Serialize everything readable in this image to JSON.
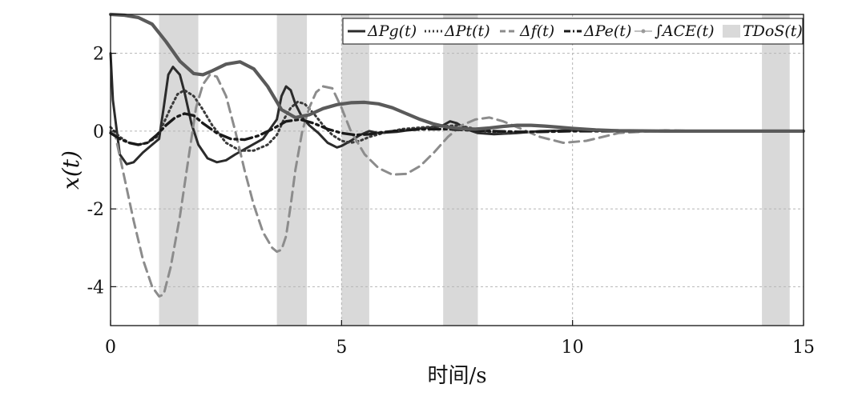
{
  "chart_data": {
    "type": "line",
    "title": "",
    "xlabel": "时间/s",
    "ylabel": "x(t)",
    "xlim": [
      0,
      15
    ],
    "ylim": [
      -5,
      3
    ],
    "xticks": [
      0,
      5,
      10,
      15
    ],
    "xtick_labels": [
      "0",
      "5",
      "10",
      "15"
    ],
    "yticks": [
      -4,
      -2,
      0,
      2
    ],
    "ytick_labels": [
      "-4",
      "-2",
      "0",
      "2"
    ],
    "grid": true,
    "legend_position": "top",
    "legend": [
      "ΔPg(t)",
      "ΔPt(t)",
      "Δf(t)",
      "ΔPe(t)",
      "∫ACE(t)",
      "TDoS(t)"
    ],
    "dos_intervals": [
      [
        1.05,
        1.9
      ],
      [
        3.6,
        4.25
      ],
      [
        5.0,
        5.6
      ],
      [
        7.2,
        7.95
      ],
      [
        14.1,
        14.7
      ]
    ],
    "series": [
      {
        "name": "ΔPg(t)",
        "style": "solid",
        "color": "#2b2b2b",
        "x": [
          0,
          0.05,
          0.2,
          0.35,
          0.5,
          0.7,
          0.9,
          1.05,
          1.15,
          1.25,
          1.35,
          1.5,
          1.6,
          1.75,
          1.9,
          2.1,
          2.3,
          2.5,
          2.7,
          3.0,
          3.3,
          3.6,
          3.7,
          3.8,
          3.9,
          4.0,
          4.15,
          4.3,
          4.5,
          4.7,
          4.9,
          5.0,
          5.2,
          5.4,
          5.6,
          5.8,
          6.2,
          6.6,
          7.0,
          7.2,
          7.35,
          7.5,
          7.7,
          7.95,
          8.3,
          8.8,
          9.3,
          10,
          11,
          12,
          13,
          14,
          15
        ],
        "y": [
          2.0,
          0.8,
          -0.6,
          -0.85,
          -0.8,
          -0.55,
          -0.35,
          -0.2,
          0.6,
          1.45,
          1.65,
          1.45,
          1.0,
          0.2,
          -0.35,
          -0.7,
          -0.8,
          -0.75,
          -0.6,
          -0.4,
          -0.2,
          0.3,
          0.9,
          1.15,
          1.05,
          0.7,
          0.35,
          0.15,
          -0.05,
          -0.3,
          -0.42,
          -0.38,
          -0.25,
          -0.1,
          0.0,
          -0.05,
          -0.02,
          0.05,
          0.1,
          0.15,
          0.25,
          0.2,
          0.05,
          -0.05,
          -0.08,
          -0.05,
          0.0,
          0.02,
          0.0,
          0.0,
          0.0,
          0.0,
          0.0
        ]
      },
      {
        "name": "ΔPt(t)",
        "style": "dotted",
        "color": "#3a3a3a",
        "x": [
          0,
          0.2,
          0.4,
          0.6,
          0.8,
          1.0,
          1.15,
          1.3,
          1.45,
          1.6,
          1.8,
          2.0,
          2.2,
          2.5,
          2.8,
          3.1,
          3.4,
          3.6,
          3.75,
          3.9,
          4.05,
          4.2,
          4.4,
          4.6,
          4.8,
          5.0,
          5.2,
          5.4,
          5.6,
          5.9,
          6.3,
          6.8,
          7.2,
          7.5,
          7.8,
          8.1,
          8.5,
          9.0,
          9.5,
          10,
          11,
          12,
          13,
          14,
          15
        ],
        "y": [
          0.1,
          -0.15,
          -0.3,
          -0.35,
          -0.3,
          -0.15,
          0.2,
          0.6,
          0.95,
          1.05,
          0.9,
          0.55,
          0.15,
          -0.3,
          -0.5,
          -0.5,
          -0.35,
          -0.1,
          0.3,
          0.6,
          0.75,
          0.7,
          0.45,
          0.15,
          -0.1,
          -0.25,
          -0.3,
          -0.25,
          -0.15,
          -0.05,
          0.05,
          0.1,
          0.12,
          0.15,
          0.08,
          0.0,
          -0.05,
          -0.03,
          0.0,
          0.02,
          0.0,
          0.0,
          0.0,
          0.0,
          0.0
        ]
      },
      {
        "name": "Δf(t)",
        "style": "dashed",
        "color": "#8c8c8c",
        "x": [
          0,
          0.1,
          0.3,
          0.5,
          0.7,
          0.9,
          1.05,
          1.15,
          1.3,
          1.5,
          1.7,
          1.85,
          2.0,
          2.15,
          2.3,
          2.5,
          2.7,
          2.9,
          3.1,
          3.3,
          3.5,
          3.6,
          3.7,
          3.8,
          3.9,
          4.0,
          4.15,
          4.3,
          4.45,
          4.6,
          4.8,
          5.0,
          5.2,
          5.5,
          5.8,
          6.1,
          6.4,
          6.7,
          7.0,
          7.3,
          7.6,
          7.9,
          8.2,
          8.5,
          8.9,
          9.3,
          9.8,
          10.3,
          11,
          12,
          13,
          14,
          15
        ],
        "y": [
          0.0,
          -0.1,
          -1.2,
          -2.3,
          -3.3,
          -4.0,
          -4.25,
          -4.2,
          -3.5,
          -2.2,
          -0.6,
          0.6,
          1.2,
          1.45,
          1.4,
          0.9,
          0.0,
          -1.0,
          -1.9,
          -2.6,
          -3.0,
          -3.1,
          -3.05,
          -2.7,
          -1.9,
          -1.0,
          0.0,
          0.6,
          1.0,
          1.15,
          1.1,
          0.6,
          0.0,
          -0.6,
          -0.95,
          -1.12,
          -1.1,
          -0.9,
          -0.55,
          -0.15,
          0.15,
          0.3,
          0.35,
          0.25,
          0.05,
          -0.15,
          -0.3,
          -0.25,
          -0.05,
          0.02,
          0.0,
          0.0,
          0.0
        ]
      },
      {
        "name": "ΔPe(t)",
        "style": "dash-dot",
        "color": "#1a1a1a",
        "x": [
          0,
          0.2,
          0.4,
          0.6,
          0.8,
          1.0,
          1.2,
          1.4,
          1.6,
          1.8,
          2.0,
          2.3,
          2.6,
          2.9,
          3.2,
          3.5,
          3.8,
          4.1,
          4.4,
          4.7,
          5.0,
          5.3,
          5.6,
          5.9,
          6.3,
          6.8,
          7.3,
          7.8,
          8.3,
          8.8,
          9.3,
          10,
          11,
          12,
          13,
          14,
          15
        ],
        "y": [
          -0.05,
          -0.2,
          -0.3,
          -0.35,
          -0.3,
          -0.1,
          0.15,
          0.35,
          0.45,
          0.4,
          0.2,
          -0.05,
          -0.2,
          -0.22,
          -0.12,
          0.05,
          0.25,
          0.3,
          0.2,
          0.05,
          -0.05,
          -0.1,
          -0.08,
          -0.03,
          0.02,
          0.05,
          0.05,
          0.02,
          0.0,
          -0.02,
          -0.02,
          0.0,
          0.0,
          0.0,
          0.0,
          0.0,
          0.0
        ]
      },
      {
        "name": "∫ACE(t)",
        "style": "solid-thick",
        "color": "#5a5a5a",
        "x": [
          0,
          0.3,
          0.6,
          0.9,
          1.2,
          1.5,
          1.8,
          2.0,
          2.2,
          2.5,
          2.8,
          3.1,
          3.4,
          3.7,
          4.0,
          4.3,
          4.6,
          4.9,
          5.2,
          5.5,
          5.8,
          6.1,
          6.4,
          6.7,
          7.0,
          7.3,
          7.6,
          7.9,
          8.2,
          8.5,
          8.8,
          9.1,
          9.4,
          9.7,
          10,
          10.5,
          11,
          12,
          13,
          14,
          15
        ],
        "y": [
          3.0,
          2.98,
          2.92,
          2.75,
          2.3,
          1.8,
          1.48,
          1.45,
          1.55,
          1.72,
          1.78,
          1.6,
          1.15,
          0.55,
          0.35,
          0.42,
          0.58,
          0.68,
          0.73,
          0.74,
          0.7,
          0.6,
          0.45,
          0.3,
          0.18,
          0.1,
          0.06,
          0.05,
          0.08,
          0.12,
          0.15,
          0.15,
          0.13,
          0.1,
          0.07,
          0.03,
          0.01,
          0.0,
          0.0,
          0.0,
          0.0
        ]
      }
    ]
  }
}
